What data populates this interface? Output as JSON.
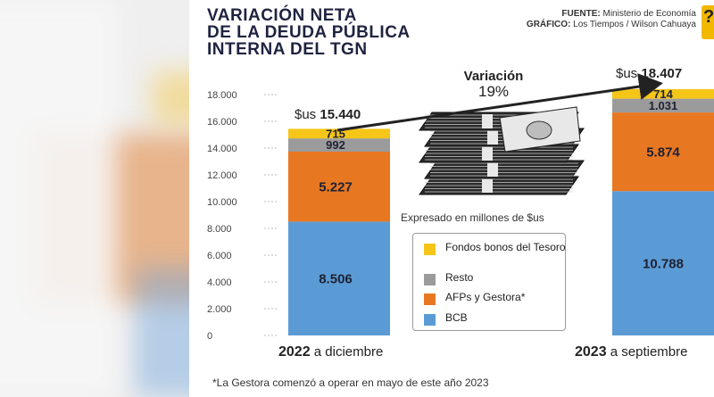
{
  "title_lines": [
    "VARIACIÓN NETA",
    "DE LA DEUDA PÚBLICA",
    "INTERNA DEL TGN"
  ],
  "credits": {
    "source_label": "FUENTE:",
    "source_value": "Ministerio de Economía",
    "graphic_label": "GRÁFICO:",
    "graphic_value": "Los Tiempos / Wilson Cahuaya"
  },
  "logo_char": "?",
  "units_note": "Expresado en millones de $us",
  "variation": {
    "label": "Variación",
    "value": "19%"
  },
  "footnote": "*La Gestora comenzó a operar en mayo de este año 2023",
  "colors": {
    "fondos": "#f5c518",
    "resto": "#9b9b9b",
    "afps": "#e87722",
    "bcb": "#5b9bd5"
  },
  "chart_data": {
    "type": "bar",
    "stacked": true,
    "categories": [
      "2022 a diciembre",
      "2023 a septiembre"
    ],
    "category_parts": [
      {
        "bold": "2022",
        "rest": "a diciembre"
      },
      {
        "bold": "2023",
        "rest": "a septiembre"
      }
    ],
    "series": [
      {
        "name": "BCB",
        "key": "bcb",
        "values": [
          8506,
          10788
        ],
        "labels": [
          "8.506",
          "10.788"
        ]
      },
      {
        "name": "AFPs y Gestora*",
        "key": "afps",
        "values": [
          5227,
          5874
        ],
        "labels": [
          "5.227",
          "5.874"
        ]
      },
      {
        "name": "Resto",
        "key": "resto",
        "values": [
          992,
          1031
        ],
        "labels": [
          "992",
          "1.031"
        ]
      },
      {
        "name": "Fondos bonos del Tesoro",
        "key": "fondos",
        "values": [
          715,
          714
        ],
        "labels": [
          "715",
          "714"
        ]
      }
    ],
    "totals": [
      15440,
      18407
    ],
    "total_labels": [
      {
        "prefix": "$us",
        "value": "15.440"
      },
      {
        "prefix": "$us",
        "value": "18.407"
      }
    ],
    "ylim": [
      0,
      18000
    ],
    "yticks": [
      0,
      2000,
      4000,
      6000,
      8000,
      10000,
      12000,
      14000,
      16000,
      18000
    ],
    "ytick_labels": [
      "0",
      "2.000",
      "4.000",
      "6.000",
      "8.000",
      "10.000",
      "12.000",
      "14.000",
      "16.000",
      "18.000"
    ],
    "legend": [
      "Fondos bonos del Tesoro",
      "Resto",
      "AFPs y Gestora*",
      "BCB"
    ]
  }
}
